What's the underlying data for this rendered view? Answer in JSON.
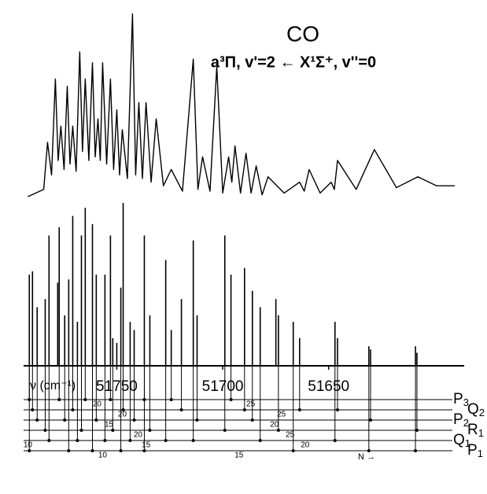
{
  "chart_data": {
    "type": "spectrum",
    "title": "CO",
    "subtitle": "a³Π, v'=2 ← X¹Σ⁺, v''=0",
    "x_label": "ν (cm⁻¹)",
    "xlim": [
      51794,
      51586
    ],
    "xticks": [
      51750,
      51700,
      51650
    ],
    "observed": {
      "ylim": [
        0,
        100
      ],
      "x": [
        51792.0,
        51784.5,
        51782.7,
        51780.8,
        51779.0,
        51777.7,
        51776.4,
        51774.9,
        51773.4,
        51772.1,
        51770.8,
        51769.2,
        51767.5,
        51766.2,
        51764.9,
        51763.2,
        51761.5,
        51760.2,
        51758.9,
        51757.8,
        51756.7,
        51754.8,
        51753.0,
        51751.5,
        51750.0,
        51748.7,
        51747.4,
        51745.0,
        51742.6,
        51741.1,
        51739.6,
        51737.9,
        51736.2,
        51733.8,
        51731.4,
        51728.0,
        51724.3,
        51719.0,
        51713.9,
        51711.7,
        51709.5,
        51706.0,
        51702.8,
        51700.0,
        51697.2,
        51695.7,
        51694.2,
        51691.6,
        51689.0,
        51686.6,
        51684.2,
        51681.4,
        51678.6,
        51671.0,
        51663.7,
        51661.5,
        51659.2,
        51654.0,
        51648.8,
        51647.3,
        51645.8,
        51637.0,
        51628.4,
        51618.0,
        51607.9,
        51599.0,
        51590.4
      ],
      "values": [
        0,
        4,
        30,
        12,
        65,
        20,
        39,
        15,
        61,
        18,
        39,
        14,
        80,
        25,
        65,
        20,
        74,
        22,
        43,
        20,
        74,
        18,
        65,
        15,
        48,
        12,
        37,
        10,
        101,
        12,
        52,
        10,
        52,
        8,
        43,
        6,
        15,
        3,
        76,
        4,
        22,
        3,
        72,
        2,
        22,
        8,
        28,
        2,
        24,
        2,
        17,
        1,
        11,
        2,
        8,
        3,
        15,
        2,
        8,
        4,
        20,
        4,
        26,
        5,
        11,
        6,
        6
      ]
    },
    "sticks": {
      "ylim": [
        0,
        100
      ],
      "x": [
        51791.3,
        51789.8,
        51787.6,
        51783.8,
        51782.0,
        51777.9,
        51777.2,
        51774.6,
        51772.7,
        51770.8,
        51768.6,
        51766.7,
        51764.9,
        51761.5,
        51759.7,
        51755.6,
        51753.0,
        51751.9,
        51750.0,
        51748.1,
        51747.0,
        51743.7,
        51741.8,
        51737.0,
        51734.4,
        51726.9,
        51724.3,
        51719.5,
        51713.9,
        51712.1,
        51699.0,
        51696.1,
        51689.7,
        51686.0,
        51682.3,
        51674.9,
        51673.7,
        51666.7,
        51663.7,
        51647.0,
        51645.8,
        51631.0,
        51630.2,
        51609.0,
        51608.3
      ],
      "values": [
        56,
        58,
        36,
        41,
        80,
        51,
        85,
        31,
        53,
        92,
        27,
        80,
        97,
        87,
        56,
        56,
        80,
        17,
        14,
        48,
        100,
        27,
        22,
        80,
        31,
        65,
        22,
        41,
        77,
        31,
        80,
        56,
        60,
        46,
        36,
        41,
        31,
        27,
        17,
        27,
        17,
        12,
        10,
        12,
        8
      ]
    },
    "branches": [
      {
        "label": "P",
        "subscript": "3",
        "lines": [
          51791.3,
          51777.2,
          51764.9,
          51753.0,
          51737.0,
          51724.3,
          51696.1
        ],
        "n_labels": [
          {
            "value": 20,
            "x": 51759.3
          },
          {
            "value": 25,
            "x": 51686.8
          }
        ]
      },
      {
        "label": "Q",
        "subscript": "2",
        "lines": [
          51789.8,
          51770.8,
          51747.0,
          51719.5,
          51689.7,
          51663.7,
          51645.8
        ],
        "n_labels": [
          {
            "value": 20,
            "x": 51747.4
          },
          {
            "value": 25,
            "x": 51672.3
          }
        ]
      },
      {
        "label": "P",
        "subscript": "2",
        "lines": [
          51787.6,
          51774.6,
          51759.7,
          51741.8,
          51712.1,
          51686.0,
          51630.2
        ],
        "n_labels": [
          {
            "value": 15,
            "x": 51753.7
          },
          {
            "value": 20,
            "x": 51675.6
          }
        ]
      },
      {
        "label": "R",
        "subscript": "1",
        "lines": [
          51783.8,
          51766.7,
          51751.9,
          51734.4,
          51699.0,
          51673.7,
          51608.3
        ],
        "n_labels": [
          {
            "value": 20,
            "x": 51740.0
          },
          {
            "value": 25,
            "x": 51668.2
          }
        ]
      },
      {
        "label": "Q",
        "subscript": "1",
        "lines": [
          51782.0,
          51768.6,
          51755.6,
          51743.7,
          51726.9,
          51713.9,
          51682.3,
          51647.0
        ],
        "n_labels": [
          {
            "value": 10,
            "x": 51792.0
          },
          {
            "value": 15,
            "x": 51736.2
          },
          {
            "value": 20,
            "x": 51661.1
          }
        ]
      },
      {
        "label": "P",
        "subscript": "1",
        "lines": [
          51791.3,
          51772.7,
          51761.5,
          51748.1,
          51737.0,
          51666.7,
          51631.0,
          51609.0
        ],
        "n_labels": [
          {
            "value": 10,
            "x": 51756.7
          },
          {
            "value": 15,
            "x": 51692.3
          }
        ]
      }
    ],
    "n_axis_label": "N →"
  }
}
